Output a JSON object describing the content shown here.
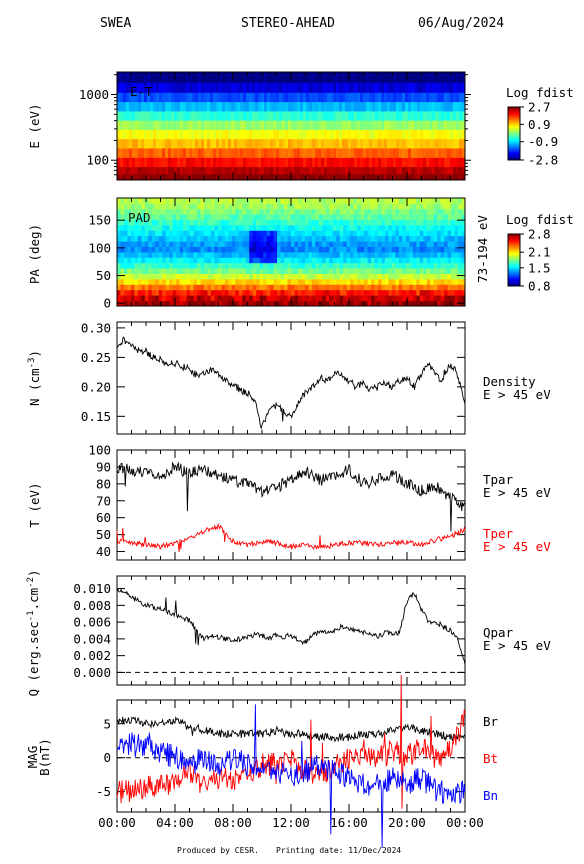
{
  "header": {
    "instrument": "SWEA",
    "spacecraft": "STEREO-AHEAD",
    "date": "06/Aug/2024"
  },
  "footer": {
    "produced_by": "Produced by CESR.",
    "printing_date": "Printing date: 11/Dec/2024"
  },
  "time_axis": {
    "range_hours": [
      0,
      24
    ],
    "ticks": [
      "00:00",
      "04:00",
      "08:00",
      "12:00",
      "16:00",
      "20:00",
      "00:00"
    ]
  },
  "colors": {
    "black": "#000000",
    "red": "#ff0000",
    "blue": "#0000ff"
  },
  "chart_data": [
    {
      "id": "et",
      "type": "heatmap",
      "in_plot_label": "E-T",
      "ylabel": "E (eV)",
      "yscale": "log",
      "ylim": [
        50,
        2200
      ],
      "yticks": [
        "1000",
        "100"
      ],
      "ytick_values": [
        1000,
        100
      ],
      "colorbar": {
        "title": "Log fdist",
        "ticks": [
          "2.7",
          "0.9",
          "-0.9",
          "-2.8"
        ],
        "range": [
          -2.8,
          2.7
        ],
        "scale": "jet"
      },
      "energy_bands": [
        {
          "e": 1800,
          "v": -2.8
        },
        {
          "e": 1250,
          "v": -2.3
        },
        {
          "e": 900,
          "v": -1.7
        },
        {
          "e": 650,
          "v": -1.1
        },
        {
          "e": 470,
          "v": -0.5
        },
        {
          "e": 340,
          "v": 0.1
        },
        {
          "e": 245,
          "v": 0.6
        },
        {
          "e": 178,
          "v": 1.0
        },
        {
          "e": 128,
          "v": 1.5
        },
        {
          "e": 92,
          "v": 2.0
        },
        {
          "e": 67,
          "v": 2.4
        },
        {
          "e": 55,
          "v": 2.7
        }
      ]
    },
    {
      "id": "pad",
      "type": "heatmap",
      "in_plot_label": "PAD",
      "ylabel": "PA (deg)",
      "ylim": [
        -5,
        190
      ],
      "yticks": [
        "150",
        "100",
        "50",
        "0"
      ],
      "ytick_values": [
        150,
        100,
        50,
        0
      ],
      "right_label": "73-194 eV",
      "colorbar": {
        "title": "Log fdist",
        "ticks": [
          "2.8",
          "2.1",
          "1.5",
          "0.8"
        ],
        "range": [
          0.8,
          2.8
        ],
        "scale": "jet"
      },
      "pa_profile": [
        {
          "pa": 180,
          "v": 1.9
        },
        {
          "pa": 160,
          "v": 1.75
        },
        {
          "pa": 140,
          "v": 1.6
        },
        {
          "pa": 120,
          "v": 1.45
        },
        {
          "pa": 100,
          "v": 1.3
        },
        {
          "pa": 80,
          "v": 1.5
        },
        {
          "pa": 60,
          "v": 1.75
        },
        {
          "pa": 45,
          "v": 2.0
        },
        {
          "pa": 30,
          "v": 2.3
        },
        {
          "pa": 15,
          "v": 2.6
        },
        {
          "pa": 0,
          "v": 2.75
        }
      ]
    },
    {
      "id": "density",
      "type": "line",
      "ylabel": "N (cm-3)",
      "ylim": [
        0.12,
        0.31
      ],
      "yticks": [
        "0.30",
        "0.25",
        "0.20",
        "0.15"
      ],
      "ytick_values": [
        0.3,
        0.25,
        0.2,
        0.15
      ],
      "series": [
        {
          "name": "Density",
          "desc": "E > 45 eV",
          "color": "#000000",
          "x": [
            0,
            0.5,
            1,
            1.5,
            2,
            2.5,
            3,
            3.5,
            4,
            4.5,
            5,
            5.5,
            6,
            6.5,
            7,
            7.5,
            8,
            8.5,
            9,
            9.5,
            10,
            10.5,
            11,
            11.5,
            12,
            12.5,
            13,
            13.5,
            14,
            14.5,
            15,
            15.5,
            16,
            16.5,
            17,
            17.5,
            18,
            18.5,
            19,
            19.5,
            20,
            20.5,
            21,
            21.5,
            22,
            22.5,
            23,
            23.5,
            24
          ],
          "y": [
            0.27,
            0.28,
            0.27,
            0.26,
            0.26,
            0.25,
            0.245,
            0.24,
            0.24,
            0.235,
            0.23,
            0.22,
            0.225,
            0.23,
            0.22,
            0.21,
            0.205,
            0.195,
            0.19,
            0.175,
            0.13,
            0.16,
            0.17,
            0.16,
            0.15,
            0.175,
            0.19,
            0.2,
            0.215,
            0.21,
            0.225,
            0.22,
            0.21,
            0.2,
            0.205,
            0.195,
            0.2,
            0.205,
            0.2,
            0.21,
            0.215,
            0.2,
            0.22,
            0.24,
            0.22,
            0.21,
            0.24,
            0.22,
            0.17
          ]
        }
      ]
    },
    {
      "id": "temperature",
      "type": "line",
      "ylabel": "T (eV)",
      "ylim": [
        35,
        100
      ],
      "yticks": [
        "100",
        "90",
        "80",
        "70",
        "60",
        "50",
        "40"
      ],
      "ytick_values": [
        100,
        90,
        80,
        70,
        60,
        50,
        40
      ],
      "series": [
        {
          "name": "Tpar",
          "desc": "E > 45 eV",
          "color": "#000000",
          "x": [
            0,
            1,
            2,
            3,
            4,
            5,
            6,
            7,
            8,
            9,
            10,
            11,
            12,
            13,
            14,
            15,
            16,
            17,
            18,
            19,
            20,
            21,
            22,
            23,
            24
          ],
          "y": [
            90,
            88,
            86,
            84,
            90,
            86,
            88,
            85,
            82,
            80,
            75,
            78,
            82,
            88,
            82,
            85,
            88,
            80,
            83,
            86,
            80,
            76,
            78,
            72,
            66
          ]
        },
        {
          "name": "Tper",
          "desc": "E > 45 eV",
          "color": "#ff0000",
          "x": [
            0,
            1,
            2,
            3,
            4,
            5,
            6,
            7,
            8,
            9,
            10,
            11,
            12,
            13,
            14,
            15,
            16,
            17,
            18,
            19,
            20,
            21,
            22,
            23,
            24
          ],
          "y": [
            46,
            45,
            44,
            43,
            45,
            48,
            52,
            55,
            46,
            44,
            46,
            45,
            43,
            44,
            42,
            44,
            45,
            45,
            44,
            45,
            45,
            44,
            47,
            49,
            53
          ]
        }
      ]
    },
    {
      "id": "heatflux",
      "type": "line",
      "ylabel": "Q (erg.sec-1.cm-2)",
      "ylim": [
        -0.0015,
        0.0115
      ],
      "yticks": [
        "0.010",
        "0.008",
        "0.006",
        "0.004",
        "0.002",
        "0.000"
      ],
      "ytick_values": [
        0.01,
        0.008,
        0.006,
        0.004,
        0.002,
        0.0
      ],
      "zero_line": true,
      "series": [
        {
          "name": "Qpar",
          "desc": "E > 45 eV",
          "color": "#000000",
          "x": [
            0,
            0.5,
            1,
            1.5,
            2,
            2.5,
            3,
            3.5,
            4,
            4.5,
            5,
            5.5,
            6,
            6.5,
            7,
            7.5,
            8,
            8.5,
            9,
            9.5,
            10,
            10.5,
            11,
            11.5,
            12,
            12.5,
            13,
            13.5,
            14,
            14.5,
            15,
            15.5,
            16,
            16.5,
            17,
            17.5,
            18,
            18.5,
            19,
            19.5,
            20,
            20.5,
            21,
            21.5,
            22,
            22.5,
            23,
            23.5,
            24
          ],
          "y": [
            0.0098,
            0.0095,
            0.009,
            0.0085,
            0.008,
            0.0078,
            0.0075,
            0.0072,
            0.007,
            0.0065,
            0.0062,
            0.005,
            0.004,
            0.0045,
            0.0042,
            0.004,
            0.0038,
            0.004,
            0.0042,
            0.0045,
            0.0044,
            0.004,
            0.0045,
            0.0042,
            0.0045,
            0.0038,
            0.0036,
            0.0045,
            0.0048,
            0.0047,
            0.005,
            0.0055,
            0.0052,
            0.005,
            0.0048,
            0.0045,
            0.0042,
            0.0048,
            0.0045,
            0.0048,
            0.0085,
            0.0095,
            0.0075,
            0.006,
            0.0058,
            0.0055,
            0.005,
            0.004,
            0.001
          ]
        }
      ]
    },
    {
      "id": "mag",
      "type": "line",
      "ylabel": "MAG B(nT)",
      "ylim": [
        -8,
        8.5
      ],
      "yticks": [
        "5",
        "0",
        "-5"
      ],
      "ytick_values": [
        5,
        0,
        -5
      ],
      "zero_line": true,
      "series": [
        {
          "name": "Br",
          "color": "#000000",
          "x": [
            0,
            1,
            2,
            3,
            4,
            5,
            6,
            7,
            8,
            9,
            10,
            11,
            12,
            13,
            14,
            15,
            16,
            17,
            18,
            19,
            20,
            21,
            22,
            23,
            24
          ],
          "y": [
            5.5,
            5.5,
            5,
            5,
            5.5,
            4.5,
            4,
            3.5,
            3.5,
            3.5,
            3.5,
            4,
            3.5,
            3.5,
            3,
            3,
            3,
            3.5,
            3.5,
            4,
            4.5,
            4,
            3.5,
            3,
            3
          ]
        },
        {
          "name": "Bt",
          "color": "#ff0000",
          "x": [
            0,
            1,
            2,
            3,
            4,
            5,
            6,
            7,
            8,
            9,
            10,
            11,
            12,
            13,
            14,
            15,
            16,
            17,
            18,
            19,
            20,
            21,
            22,
            23,
            24
          ],
          "y": [
            -5,
            -5,
            -4.5,
            -4,
            -3.5,
            -2,
            -4,
            -3,
            -3,
            -3,
            -1,
            -1,
            0,
            -2,
            -3,
            -1,
            0,
            1,
            0,
            1,
            0,
            2,
            0,
            1,
            6
          ]
        },
        {
          "name": "Bn",
          "color": "#0000ff",
          "x": [
            0,
            1,
            2,
            3,
            4,
            5,
            6,
            7,
            8,
            9,
            10,
            11,
            12,
            13,
            14,
            15,
            16,
            17,
            18,
            19,
            20,
            21,
            22,
            23,
            24
          ],
          "y": [
            2,
            2,
            1.5,
            1,
            0,
            -1,
            0,
            -1,
            0,
            -1,
            -1,
            -2,
            -3,
            -2,
            -1,
            -2,
            -3,
            -4,
            -4,
            -3,
            -4,
            -3,
            -5,
            -5,
            -5
          ]
        }
      ]
    }
  ]
}
